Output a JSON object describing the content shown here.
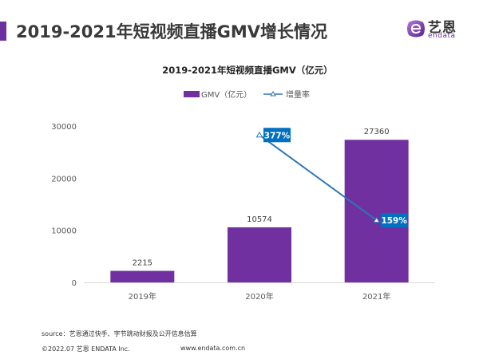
{
  "header": {
    "title": "2019-2021年短视频直播GMV增长情况",
    "accent_color": "#6b2fa0"
  },
  "logo": {
    "cn_text": "艺恩",
    "en_text": "endata",
    "icon": "endata-e-logo-icon"
  },
  "chart_data": {
    "type": "bar",
    "title": "2019-2021年短视频直播GMV（亿元）",
    "categories": [
      "2019年",
      "2020年",
      "2021年"
    ],
    "series": [
      {
        "name": "GMV（亿元）",
        "type": "bar",
        "color": "#7030a0",
        "values": [
          2215,
          10574,
          27360
        ],
        "labels": [
          "2215",
          "10574",
          "27360"
        ]
      },
      {
        "name": "增量率",
        "type": "line",
        "color": "#2e75b6",
        "label_bg": "#0070c0",
        "values": [
          null,
          377,
          159
        ],
        "labels": [
          "",
          "377%",
          "159%"
        ],
        "axis": "secondary"
      }
    ],
    "xlabel": "",
    "ylabel": "",
    "ylim": [
      0,
      30000
    ],
    "yticks": [
      0,
      10000,
      20000,
      30000
    ],
    "ytick_labels": [
      "0",
      "10000",
      "20000",
      "30000"
    ],
    "y2lim": [
      0,
      400
    ],
    "y2_visible": false,
    "grid": false,
    "legend": {
      "position": "top",
      "entries": [
        "GMV（亿元）",
        "增量率"
      ]
    }
  },
  "footer": {
    "source": "source：艺恩通过快手、字节跳动财报及公开信息估算",
    "copyright": "©2022.07 艺恩 ENDATA Inc.",
    "url": "www.endata.com.cn"
  }
}
